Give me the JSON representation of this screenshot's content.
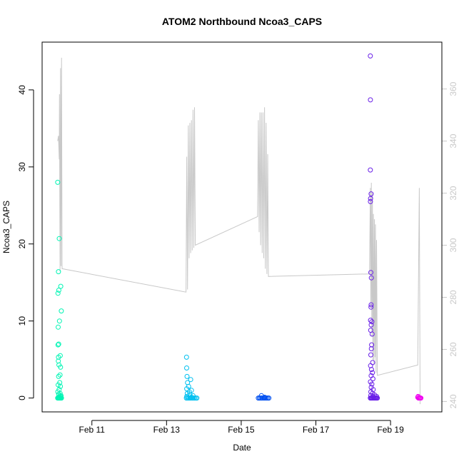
{
  "chart_data": {
    "type": "scatter",
    "title": "ATOM2 Northbound Ncoa3_CAPS",
    "xlabel": "Date",
    "ylabel": "Ncoa3_CAPS",
    "x_type": "date",
    "xlim": [
      "2024-02-09T16:00",
      "2024-02-20T09:00"
    ],
    "ylim": [
      -1.8,
      46.2
    ],
    "y2lim": [
      236,
      378
    ],
    "x_ticks": [
      {
        "label": "Feb 11",
        "value": "2024-02-11T00:00"
      },
      {
        "label": "Feb 13",
        "value": "2024-02-13T00:00"
      },
      {
        "label": "Feb 15",
        "value": "2024-02-15T00:00"
      },
      {
        "label": "Feb 17",
        "value": "2024-02-17T00:00"
      },
      {
        "label": "Feb 19",
        "value": "2024-02-19T00:00"
      }
    ],
    "y_ticks": [
      0,
      10,
      20,
      30,
      40
    ],
    "y2_ticks": [
      240,
      260,
      280,
      300,
      320,
      340,
      360
    ],
    "grid": false,
    "line_color": "#c8c8c8",
    "series": [
      {
        "color": "#00f5b4",
        "points": [
          [
            "2024-02-10T02:00",
            28.0
          ],
          [
            "2024-02-10T02:30",
            16.4
          ],
          [
            "2024-02-10T03:00",
            20.7
          ],
          [
            "2024-02-10T02:10",
            13.6
          ],
          [
            "2024-02-10T02:45",
            14.0
          ],
          [
            "2024-02-10T04:00",
            14.5
          ],
          [
            "2024-02-10T04:20",
            11.3
          ],
          [
            "2024-02-10T02:20",
            9.2
          ],
          [
            "2024-02-10T03:10",
            10.0
          ],
          [
            "2024-02-10T02:40",
            7.0
          ],
          [
            "2024-02-10T02:15",
            6.9
          ],
          [
            "2024-02-10T02:30",
            5.3
          ],
          [
            "2024-02-10T03:40",
            5.5
          ],
          [
            "2024-02-10T02:25",
            4.8
          ],
          [
            "2024-02-10T02:50",
            4.3
          ],
          [
            "2024-02-10T03:50",
            4.0
          ],
          [
            "2024-02-10T03:30",
            3.0
          ],
          [
            "2024-02-10T02:35",
            2.8
          ],
          [
            "2024-02-10T03:20",
            2.0
          ],
          [
            "2024-02-10T02:20",
            1.7
          ],
          [
            "2024-02-10T03:45",
            1.5
          ],
          [
            "2024-02-10T02:55",
            1.1
          ],
          [
            "2024-02-10T02:05",
            0.8
          ],
          [
            "2024-02-10T03:35",
            0.6
          ],
          [
            "2024-02-10T02:40",
            0.5
          ],
          [
            "2024-02-10T04:10",
            0.3
          ],
          [
            "2024-02-10T02:00",
            0.0
          ],
          [
            "2024-02-10T02:20",
            0.0
          ],
          [
            "2024-02-10T02:45",
            0.0
          ],
          [
            "2024-02-10T03:10",
            0.0
          ],
          [
            "2024-02-10T03:35",
            0.0
          ],
          [
            "2024-02-10T04:00",
            0.0
          ],
          [
            "2024-02-10T04:25",
            0.0
          ],
          [
            "2024-02-10T02:30",
            0.1
          ],
          [
            "2024-02-10T03:20",
            0.1
          ],
          [
            "2024-02-10T03:55",
            0.2
          ]
        ]
      },
      {
        "color": "#00c0f0",
        "points": [
          [
            "2024-02-13T12:50",
            5.3
          ],
          [
            "2024-02-13T12:55",
            3.9
          ],
          [
            "2024-02-13T13:10",
            2.8
          ],
          [
            "2024-02-13T15:30",
            2.4
          ],
          [
            "2024-02-13T13:30",
            2.0
          ],
          [
            "2024-02-13T14:10",
            1.5
          ],
          [
            "2024-02-13T13:00",
            1.2
          ],
          [
            "2024-02-13T16:00",
            1.0
          ],
          [
            "2024-02-13T14:40",
            0.8
          ],
          [
            "2024-02-13T13:20",
            0.6
          ],
          [
            "2024-02-13T15:00",
            0.5
          ],
          [
            "2024-02-13T17:00",
            0.3
          ],
          [
            "2024-02-13T12:45",
            0.0
          ],
          [
            "2024-02-13T13:30",
            0.0
          ],
          [
            "2024-02-13T14:15",
            0.0
          ],
          [
            "2024-02-13T15:00",
            0.0
          ],
          [
            "2024-02-13T15:45",
            0.0
          ],
          [
            "2024-02-13T16:30",
            0.0
          ],
          [
            "2024-02-13T17:15",
            0.0
          ],
          [
            "2024-02-13T18:00",
            0.0
          ],
          [
            "2024-02-13T18:45",
            0.0
          ],
          [
            "2024-02-13T19:30",
            0.0
          ],
          [
            "2024-02-13T13:00",
            0.2
          ],
          [
            "2024-02-13T16:00",
            0.1
          ]
        ]
      },
      {
        "color": "#0050f0",
        "points": [
          [
            "2024-02-15T11:00",
            0.0
          ],
          [
            "2024-02-15T11:45",
            0.0
          ],
          [
            "2024-02-15T12:30",
            0.0
          ],
          [
            "2024-02-15T13:15",
            0.0
          ],
          [
            "2024-02-15T14:00",
            0.0
          ],
          [
            "2024-02-15T14:45",
            0.0
          ],
          [
            "2024-02-15T15:30",
            0.0
          ],
          [
            "2024-02-15T16:15",
            0.0
          ],
          [
            "2024-02-15T17:00",
            0.0
          ],
          [
            "2024-02-15T17:45",
            0.0
          ],
          [
            "2024-02-15T13:00",
            0.3
          ],
          [
            "2024-02-15T15:00",
            0.1
          ]
        ]
      },
      {
        "color": "#6a20e8",
        "points": [
          [
            "2024-02-18T11:00",
            44.4
          ],
          [
            "2024-02-18T11:05",
            38.7
          ],
          [
            "2024-02-18T11:00",
            29.6
          ],
          [
            "2024-02-18T11:30",
            26.5
          ],
          [
            "2024-02-18T11:10",
            25.9
          ],
          [
            "2024-02-18T11:05",
            25.5
          ],
          [
            "2024-02-18T11:20",
            16.3
          ],
          [
            "2024-02-18T11:40",
            15.6
          ],
          [
            "2024-02-18T11:30",
            12.1
          ],
          [
            "2024-02-18T11:25",
            11.8
          ],
          [
            "2024-02-18T11:10",
            10.1
          ],
          [
            "2024-02-18T12:00",
            9.9
          ],
          [
            "2024-02-18T11:35",
            9.5
          ],
          [
            "2024-02-18T11:15",
            8.8
          ],
          [
            "2024-02-18T12:10",
            8.3
          ],
          [
            "2024-02-18T11:50",
            6.9
          ],
          [
            "2024-02-18T11:40",
            6.4
          ],
          [
            "2024-02-18T11:20",
            5.6
          ],
          [
            "2024-02-18T12:30",
            4.6
          ],
          [
            "2024-02-18T11:10",
            4.2
          ],
          [
            "2024-02-18T11:45",
            3.7
          ],
          [
            "2024-02-18T12:20",
            3.3
          ],
          [
            "2024-02-18T11:30",
            2.9
          ],
          [
            "2024-02-18T12:40",
            2.5
          ],
          [
            "2024-02-18T11:05",
            2.1
          ],
          [
            "2024-02-18T12:00",
            1.8
          ],
          [
            "2024-02-18T11:35",
            1.4
          ],
          [
            "2024-02-18T12:50",
            1.1
          ],
          [
            "2024-02-18T11:20",
            0.8
          ],
          [
            "2024-02-18T12:25",
            0.6
          ],
          [
            "2024-02-18T11:00",
            0.0
          ],
          [
            "2024-02-18T11:30",
            0.0
          ],
          [
            "2024-02-18T12:00",
            0.0
          ],
          [
            "2024-02-18T12:30",
            0.0
          ],
          [
            "2024-02-18T13:00",
            0.0
          ],
          [
            "2024-02-18T13:30",
            0.0
          ],
          [
            "2024-02-18T14:00",
            0.0
          ],
          [
            "2024-02-18T14:30",
            0.0
          ],
          [
            "2024-02-18T15:00",
            0.0
          ],
          [
            "2024-02-18T15:30",
            0.0
          ],
          [
            "2024-02-18T11:15",
            0.3
          ],
          [
            "2024-02-18T12:45",
            0.2
          ],
          [
            "2024-02-18T13:45",
            0.4
          ],
          [
            "2024-02-18T15:00",
            0.2
          ]
        ]
      },
      {
        "color": "#f000f0",
        "points": [
          [
            "2024-02-19T17:30",
            0.1
          ],
          [
            "2024-02-19T18:00",
            0.0
          ],
          [
            "2024-02-19T18:30",
            0.0
          ],
          [
            "2024-02-19T19:00",
            0.0
          ],
          [
            "2024-02-19T19:30",
            0.0
          ],
          [
            "2024-02-19T17:45",
            0.2
          ]
        ]
      }
    ],
    "line_points": [
      [
        "2024-02-10T02:00",
        340
      ],
      [
        "2024-02-10T02:30",
        342
      ],
      [
        "2024-02-10T03:00",
        333
      ],
      [
        "2024-02-10T03:10",
        358
      ],
      [
        "2024-02-10T03:30",
        290
      ],
      [
        "2024-02-10T03:50",
        368
      ],
      [
        "2024-02-10T04:10",
        292
      ],
      [
        "2024-02-10T04:30",
        372
      ],
      [
        "2024-02-10T04:50",
        291
      ],
      [
        "2024-02-13T12:30",
        282
      ],
      [
        "2024-02-13T13:00",
        334
      ],
      [
        "2024-02-13T13:30",
        283
      ],
      [
        "2024-02-13T14:00",
        346
      ],
      [
        "2024-02-13T14:30",
        295
      ],
      [
        "2024-02-13T15:00",
        347
      ],
      [
        "2024-02-13T15:30",
        297
      ],
      [
        "2024-02-13T16:00",
        348
      ],
      [
        "2024-02-13T16:30",
        298
      ],
      [
        "2024-02-13T17:00",
        352
      ],
      [
        "2024-02-13T17:30",
        299
      ],
      [
        "2024-02-13T18:00",
        353
      ],
      [
        "2024-02-13T18:30",
        300
      ],
      [
        "2024-02-15T10:30",
        311
      ],
      [
        "2024-02-15T11:00",
        348
      ],
      [
        "2024-02-15T11:30",
        305
      ],
      [
        "2024-02-15T12:00",
        351
      ],
      [
        "2024-02-15T12:30",
        300
      ],
      [
        "2024-02-15T13:00",
        351
      ],
      [
        "2024-02-15T13:30",
        297
      ],
      [
        "2024-02-15T14:00",
        351
      ],
      [
        "2024-02-15T14:30",
        295
      ],
      [
        "2024-02-15T15:00",
        353
      ],
      [
        "2024-02-15T15:30",
        291
      ],
      [
        "2024-02-15T16:00",
        347
      ],
      [
        "2024-02-15T16:30",
        289
      ],
      [
        "2024-02-15T17:00",
        335
      ],
      [
        "2024-02-15T17:30",
        288
      ],
      [
        "2024-02-18T10:30",
        289
      ],
      [
        "2024-02-18T11:00",
        322
      ],
      [
        "2024-02-18T11:20",
        276
      ],
      [
        "2024-02-18T11:40",
        324
      ],
      [
        "2024-02-18T12:00",
        265
      ],
      [
        "2024-02-18T12:20",
        320
      ],
      [
        "2024-02-18T12:40",
        256
      ],
      [
        "2024-02-18T13:00",
        312
      ],
      [
        "2024-02-18T13:20",
        254
      ],
      [
        "2024-02-18T13:40",
        310
      ],
      [
        "2024-02-18T14:00",
        257
      ],
      [
        "2024-02-18T14:20",
        308
      ],
      [
        "2024-02-18T14:40",
        251
      ],
      [
        "2024-02-18T15:00",
        302
      ],
      [
        "2024-02-18T15:30",
        250
      ],
      [
        "2024-02-19T17:30",
        254
      ],
      [
        "2024-02-19T18:30",
        322
      ],
      [
        "2024-02-19T19:00",
        239
      ]
    ]
  }
}
